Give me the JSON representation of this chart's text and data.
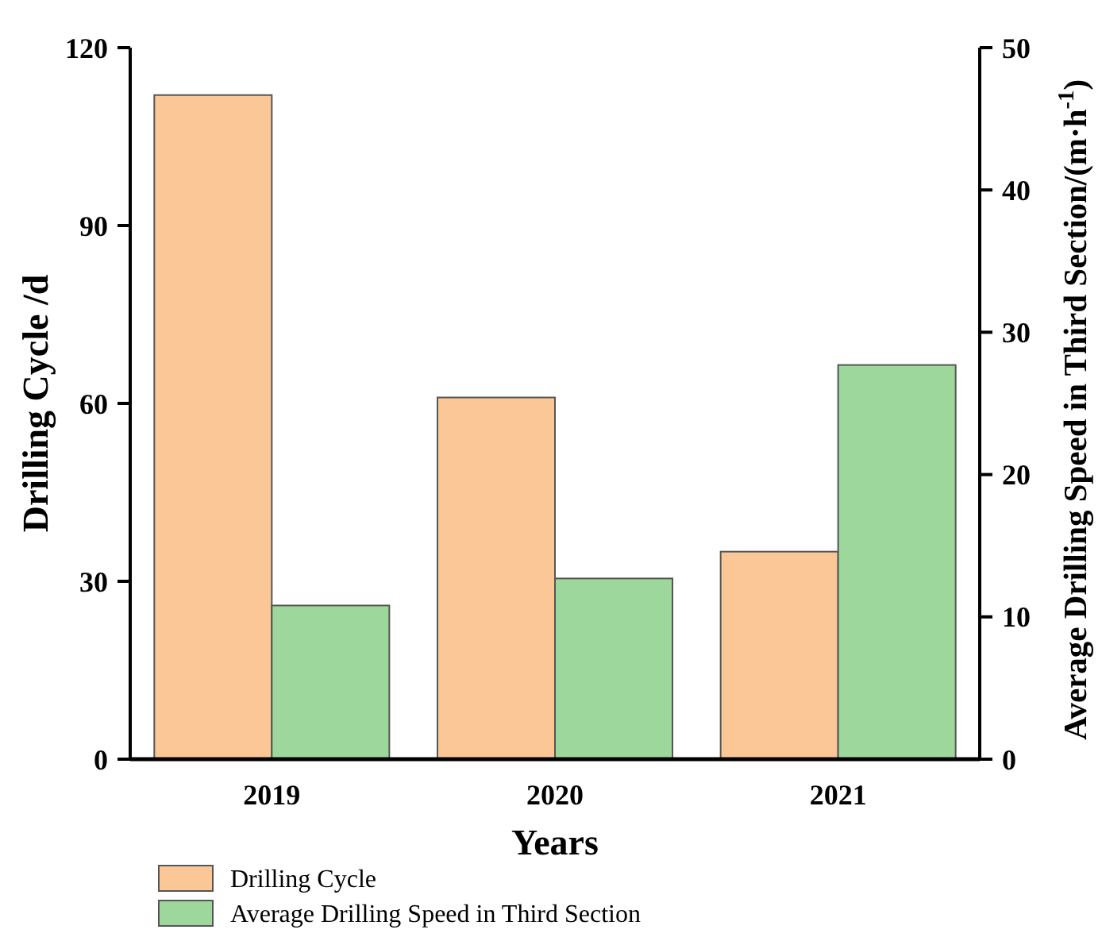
{
  "chart_data": {
    "type": "bar",
    "xlabel": "Years",
    "ylabel": "Drilling Cycle /d",
    "y2label": "Average Drilling Speed in Third Section/(m·h$^{-1}$)",
    "categories": [
      "2019",
      "2020",
      "2021"
    ],
    "series": [
      {
        "name": "Drilling Cycle",
        "color": "#fbc797",
        "values": [
          112,
          61,
          35
        ]
      },
      {
        "name": "Average Drilling Speed in Third Section",
        "color": "#9ed79b",
        "values": [
          10.8,
          12.7,
          27.7
        ],
        "axis": "y2"
      }
    ],
    "ylim": [
      0,
      120
    ],
    "yticks": [
      0,
      30,
      60,
      90,
      120
    ],
    "y2lim": [
      0,
      50
    ],
    "y2ticks": [
      0,
      10,
      20,
      30,
      40,
      50
    ],
    "legend": "bottom",
    "grid": false
  }
}
